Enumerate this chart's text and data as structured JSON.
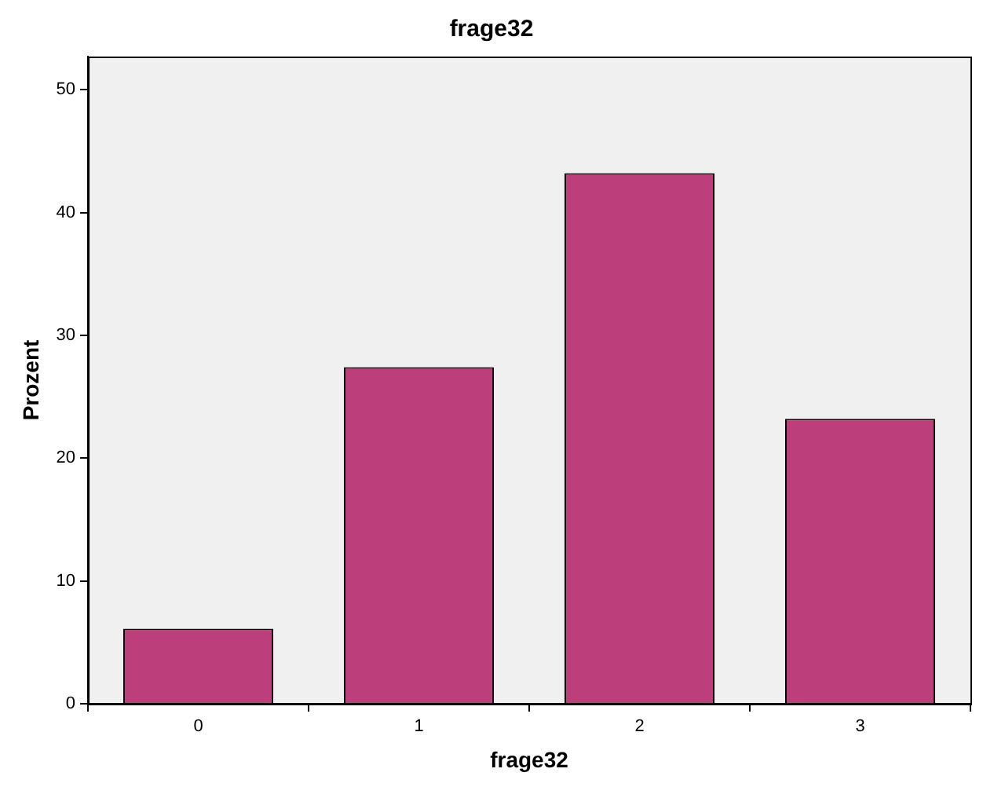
{
  "chart_data": {
    "type": "bar",
    "title": "frage32",
    "xlabel": "frage32",
    "ylabel": "Prozent",
    "categories": [
      "0",
      "1",
      "2",
      "3"
    ],
    "values": [
      6.1,
      27.4,
      43.2,
      23.2
    ],
    "color": "#bc3f7b",
    "ylim": [
      0,
      52.7
    ],
    "yticks": [
      0,
      10,
      20,
      30,
      40,
      50
    ],
    "grid": false
  }
}
